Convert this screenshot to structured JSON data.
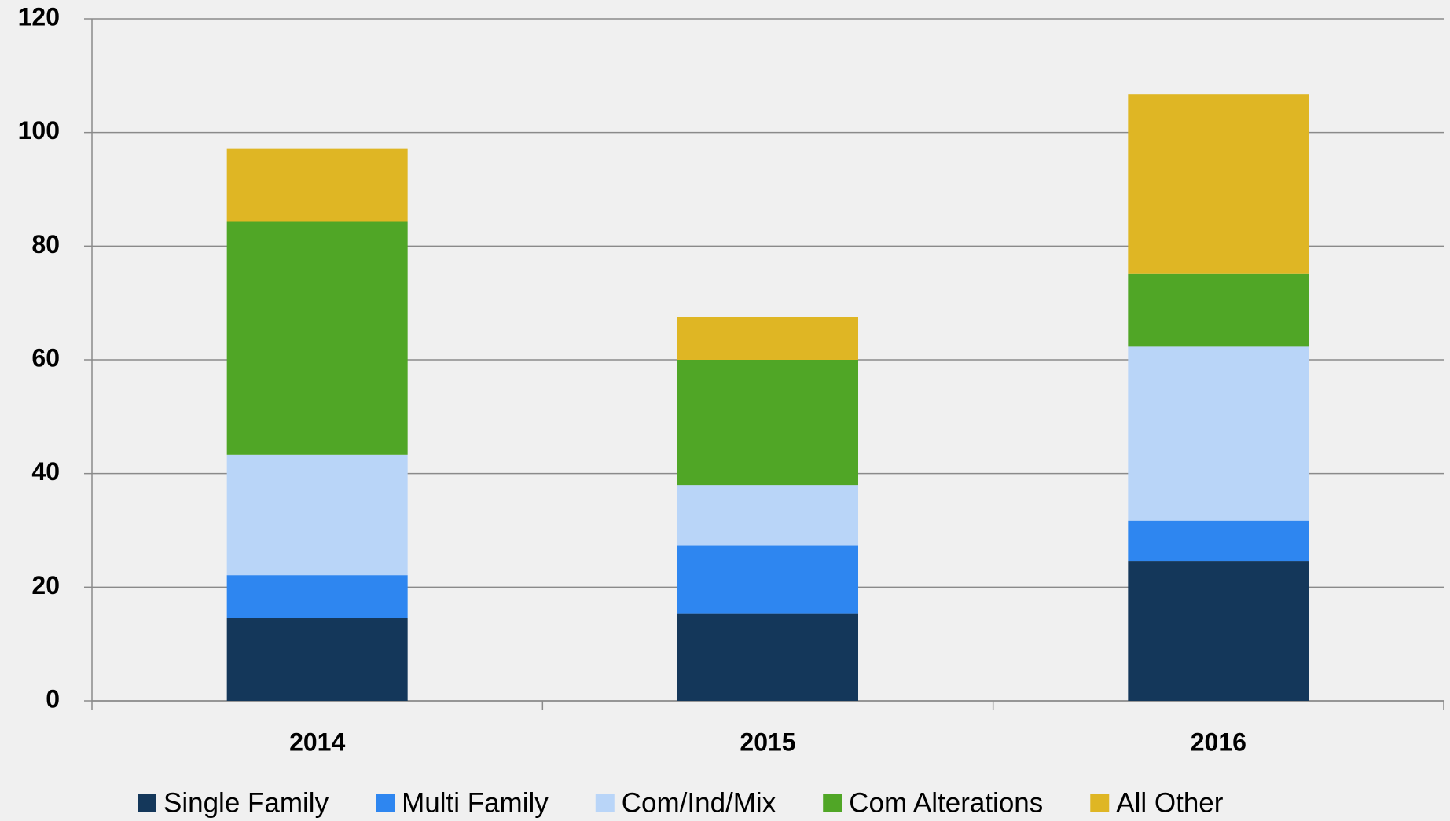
{
  "chart_data": {
    "type": "stacked_bar",
    "categories": [
      "2014",
      "2015",
      "2016"
    ],
    "series": [
      {
        "name": "Single Family",
        "color": "#14375a",
        "values": [
          14.6,
          15.4,
          24.6
        ]
      },
      {
        "name": "Multi Family",
        "color": "#2e86f0",
        "values": [
          7.5,
          11.9,
          7.1
        ]
      },
      {
        "name": "Com/Ind/Mix",
        "color": "#b9d5f8",
        "values": [
          21.2,
          10.7,
          30.6
        ]
      },
      {
        "name": "Com Alterations",
        "color": "#50a626",
        "values": [
          41.1,
          22.0,
          12.8
        ]
      },
      {
        "name": "All Other",
        "color": "#dfb624",
        "values": [
          12.7,
          7.6,
          31.6
        ]
      }
    ],
    "ylim": [
      0,
      120
    ],
    "yticks": [
      0,
      20,
      40,
      60,
      80,
      100,
      120
    ],
    "grid": true,
    "legend": "bottom"
  }
}
